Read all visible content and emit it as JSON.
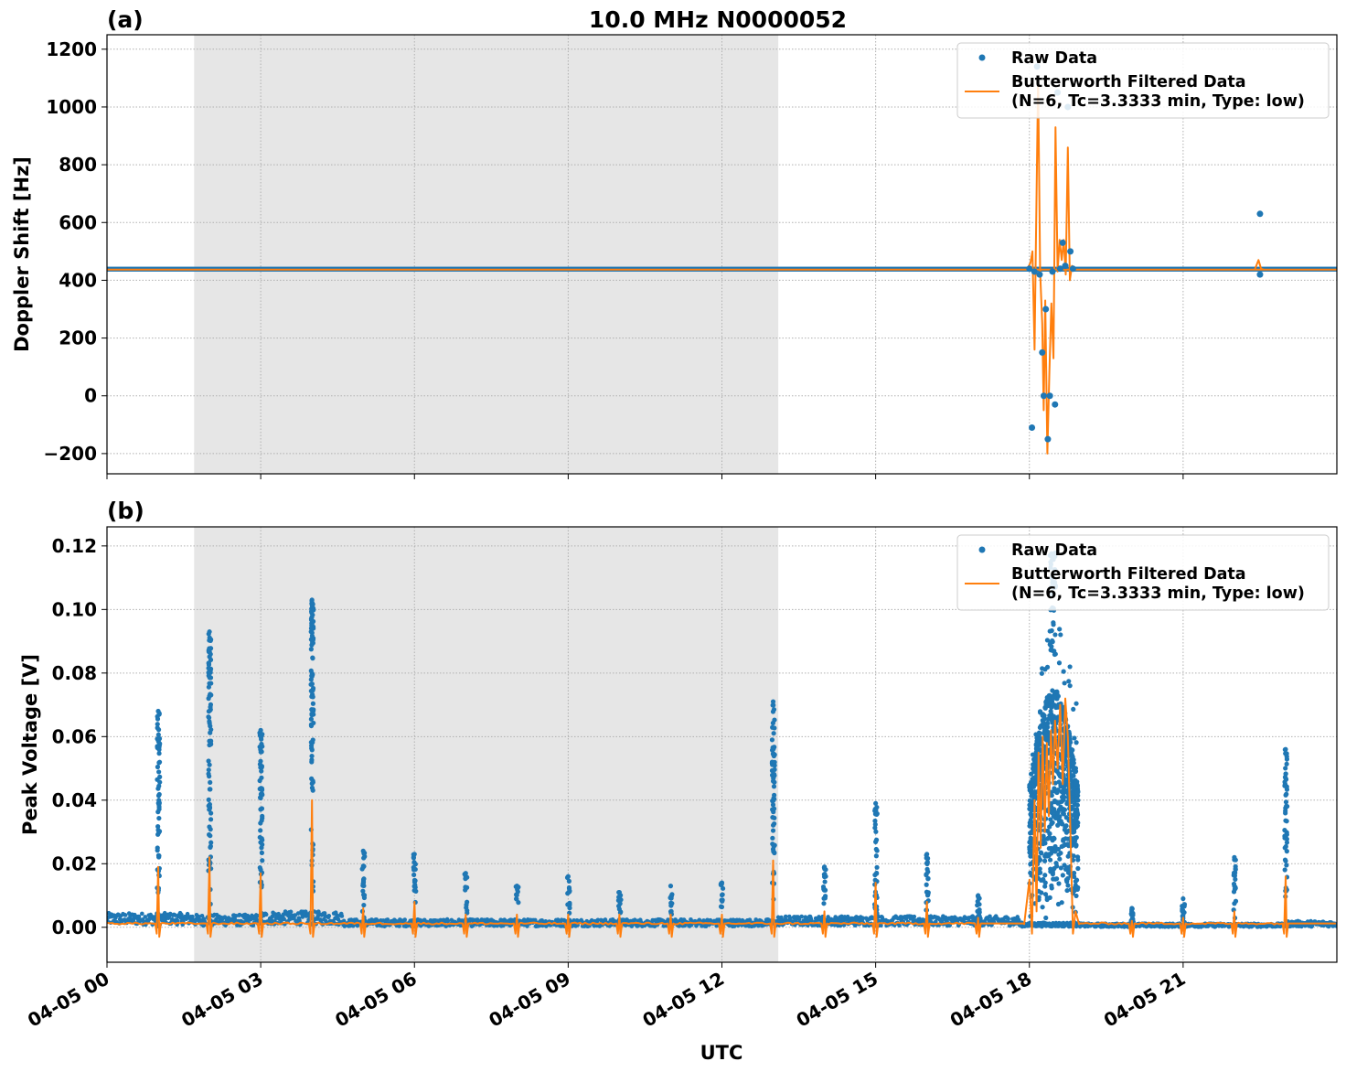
{
  "figure": {
    "title": "10.0 MHz N0000052",
    "xlabel": "UTC"
  },
  "colors": {
    "raw": "#1f77b4",
    "filtered": "#ff7f0e",
    "night_shading": "#e6e6e6",
    "grid": "#b0b0b0"
  },
  "chart_data": [
    {
      "type": "line",
      "panel_label": "(a)",
      "title": "10.0 MHz N0000052",
      "ylabel": "Doppler Shift [Hz]",
      "xlabel": "",
      "x_unit": "hours UTC since 04-05 00:00",
      "xlim": [
        0,
        24
      ],
      "ylim": [
        -270,
        1250
      ],
      "x_ticks": [
        {
          "v": 0,
          "label": "04-05 00"
        },
        {
          "v": 3,
          "label": "04-05 03"
        },
        {
          "v": 6,
          "label": "04-05 06"
        },
        {
          "v": 9,
          "label": "04-05 09"
        },
        {
          "v": 12,
          "label": "04-05 12"
        },
        {
          "v": 15,
          "label": "04-05 15"
        },
        {
          "v": 18,
          "label": "04-05 18"
        },
        {
          "v": 21,
          "label": "04-05 21"
        }
      ],
      "y_ticks": [
        {
          "v": -200,
          "label": "−200"
        },
        {
          "v": 0,
          "label": "0"
        },
        {
          "v": 200,
          "label": "200"
        },
        {
          "v": 400,
          "label": "400"
        },
        {
          "v": 600,
          "label": "600"
        },
        {
          "v": 800,
          "label": "800"
        },
        {
          "v": 1000,
          "label": "1000"
        },
        {
          "v": 1200,
          "label": "1200"
        }
      ],
      "grid": true,
      "shaded_region": [
        1.7,
        13.1
      ],
      "legend": {
        "placement": "top-right",
        "entries": [
          {
            "kind": "marker",
            "label": "Raw Data"
          },
          {
            "kind": "line",
            "label": "Butterworth Filtered Data",
            "label2": "(N=6, Tc=3.3333 min, Type: low)"
          }
        ]
      },
      "series": [
        {
          "name": "Raw Data",
          "kind": "scatter",
          "baseline_band": [
            430,
            447
          ],
          "points": [
            [
              18.0,
              440
            ],
            [
              18.05,
              -110
            ],
            [
              18.1,
              430
            ],
            [
              18.15,
              1140
            ],
            [
              18.2,
              420
            ],
            [
              18.25,
              150
            ],
            [
              18.28,
              0
            ],
            [
              18.32,
              300
            ],
            [
              18.36,
              -150
            ],
            [
              18.4,
              0
            ],
            [
              18.45,
              430
            ],
            [
              18.5,
              -30
            ],
            [
              18.55,
              1050
            ],
            [
              18.6,
              440
            ],
            [
              18.65,
              530
            ],
            [
              18.7,
              450
            ],
            [
              18.75,
              1000
            ],
            [
              18.8,
              500
            ],
            [
              18.85,
              440
            ],
            [
              22.5,
              630
            ],
            [
              22.5,
              420
            ]
          ]
        },
        {
          "name": "Butterworth Filtered Data",
          "kind": "line",
          "baseline": 437,
          "points": [
            [
              17.95,
              437
            ],
            [
              18.02,
              460
            ],
            [
              18.06,
              500
            ],
            [
              18.1,
              160
            ],
            [
              18.13,
              560
            ],
            [
              18.17,
              1100
            ],
            [
              18.21,
              430
            ],
            [
              18.25,
              250
            ],
            [
              18.28,
              -50
            ],
            [
              18.31,
              330
            ],
            [
              18.35,
              -200
            ],
            [
              18.39,
              80
            ],
            [
              18.43,
              320
            ],
            [
              18.47,
              130
            ],
            [
              18.51,
              930
            ],
            [
              18.55,
              430
            ],
            [
              18.59,
              540
            ],
            [
              18.63,
              470
            ],
            [
              18.67,
              540
            ],
            [
              18.71,
              420
            ],
            [
              18.75,
              860
            ],
            [
              18.79,
              400
            ],
            [
              18.83,
              450
            ],
            [
              18.88,
              437
            ],
            [
              22.4,
              437
            ],
            [
              22.47,
              470
            ],
            [
              22.52,
              440
            ],
            [
              22.57,
              437
            ]
          ]
        }
      ]
    },
    {
      "type": "line",
      "panel_label": "(b)",
      "ylabel": "Peak Voltage [V]",
      "xlabel": "UTC",
      "x_unit": "hours UTC since 04-05 00:00",
      "xlim": [
        0,
        24
      ],
      "ylim": [
        -0.011,
        0.126
      ],
      "x_ticks": [
        {
          "v": 0,
          "label": "04-05 00"
        },
        {
          "v": 3,
          "label": "04-05 03"
        },
        {
          "v": 6,
          "label": "04-05 06"
        },
        {
          "v": 9,
          "label": "04-05 09"
        },
        {
          "v": 12,
          "label": "04-05 12"
        },
        {
          "v": 15,
          "label": "04-05 15"
        },
        {
          "v": 18,
          "label": "04-05 18"
        },
        {
          "v": 21,
          "label": "04-05 21"
        }
      ],
      "y_ticks": [
        {
          "v": 0,
          "label": "0.00"
        },
        {
          "v": 0.02,
          "label": "0.02"
        },
        {
          "v": 0.04,
          "label": "0.04"
        },
        {
          "v": 0.06,
          "label": "0.06"
        },
        {
          "v": 0.08,
          "label": "0.08"
        },
        {
          "v": 0.1,
          "label": "0.10"
        },
        {
          "v": 0.12,
          "label": "0.12"
        }
      ],
      "grid": true,
      "shaded_region": [
        1.7,
        13.1
      ],
      "legend": {
        "placement": "top-right",
        "entries": [
          {
            "kind": "marker",
            "label": "Raw Data"
          },
          {
            "kind": "line",
            "label": "Butterworth Filtered Data",
            "label2": "(N=6, Tc=3.3333 min, Type: low)"
          }
        ]
      },
      "series": [
        {
          "name": "Raw Data",
          "kind": "scatter",
          "baseline_segments": [
            [
              0.0,
              0.0008,
              0.0045
            ],
            [
              1.7,
              0.0005,
              0.004
            ],
            [
              3.0,
              0.0008,
              0.005
            ],
            [
              4.6,
              0.0003,
              0.0025
            ],
            [
              13.1,
              0.0005,
              0.0035
            ],
            [
              17.8,
              0.0002,
              0.0015
            ],
            [
              19.0,
              0.0001,
              0.0012
            ],
            [
              23.0,
              0.0002,
              0.002
            ]
          ],
          "bursts": [
            [
              1.0,
              0.068
            ],
            [
              2.0,
              0.093
            ],
            [
              3.0,
              0.062
            ],
            [
              4.0,
              0.103
            ],
            [
              5.0,
              0.024
            ],
            [
              6.0,
              0.023
            ],
            [
              7.0,
              0.017
            ],
            [
              8.0,
              0.013
            ],
            [
              9.0,
              0.016
            ],
            [
              10.0,
              0.011
            ],
            [
              11.0,
              0.013
            ],
            [
              12.0,
              0.014
            ],
            [
              13.0,
              0.071
            ],
            [
              14.0,
              0.019
            ],
            [
              15.0,
              0.039
            ],
            [
              16.0,
              0.023
            ],
            [
              17.0,
              0.01
            ],
            [
              20.0,
              0.006
            ],
            [
              21.0,
              0.009
            ],
            [
              22.0,
              0.022
            ],
            [
              23.0,
              0.056
            ]
          ],
          "storm": [
            18.0,
            18.95,
            0.118
          ]
        },
        {
          "name": "Butterworth Filtered Data",
          "kind": "line",
          "baseline": 0.0012,
          "spikes": [
            [
              1.0,
              0.019
            ],
            [
              2.0,
              0.022
            ],
            [
              3.0,
              0.017
            ],
            [
              4.0,
              0.04
            ],
            [
              5.0,
              0.006
            ],
            [
              6.0,
              0.008
            ],
            [
              7.0,
              0.004
            ],
            [
              8.0,
              0.004
            ],
            [
              9.0,
              0.004
            ],
            [
              10.0,
              0.004
            ],
            [
              11.0,
              0.004
            ],
            [
              12.0,
              0.004
            ],
            [
              13.0,
              0.021
            ],
            [
              14.0,
              0.005
            ],
            [
              15.0,
              0.014
            ],
            [
              16.0,
              0.008
            ],
            [
              17.0,
              0.003
            ],
            [
              20.0,
              0.002
            ],
            [
              21.0,
              0.003
            ],
            [
              22.0,
              0.005
            ],
            [
              23.0,
              0.016
            ]
          ],
          "storm_points": [
            [
              17.9,
              0.001
            ],
            [
              18.0,
              0.015
            ],
            [
              18.05,
              -0.002
            ],
            [
              18.1,
              0.04
            ],
            [
              18.14,
              0.005
            ],
            [
              18.18,
              0.055
            ],
            [
              18.22,
              0.025
            ],
            [
              18.26,
              0.06
            ],
            [
              18.3,
              0.03
            ],
            [
              18.34,
              0.058
            ],
            [
              18.38,
              0.035
            ],
            [
              18.42,
              0.062
            ],
            [
              18.46,
              0.045
            ],
            [
              18.5,
              0.065
            ],
            [
              18.55,
              0.05
            ],
            [
              18.6,
              0.07
            ],
            [
              18.65,
              0.045
            ],
            [
              18.7,
              0.072
            ],
            [
              18.75,
              0.06
            ],
            [
              18.8,
              0.03
            ],
            [
              18.85,
              -0.002
            ],
            [
              18.9,
              0.005
            ],
            [
              18.97,
              0.001
            ]
          ]
        }
      ]
    }
  ]
}
